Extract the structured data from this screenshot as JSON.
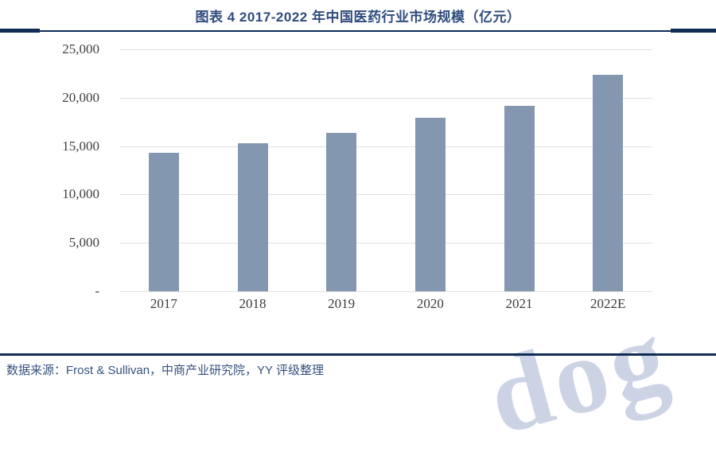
{
  "header": {
    "title": "图表 4 2017-2022 年中国医药行业市场规模（亿元）"
  },
  "chart_data": {
    "type": "bar",
    "title": "图表 4 2017-2022 年中国医药行业市场规模（亿元）",
    "categories": [
      "2017",
      "2018",
      "2019",
      "2020",
      "2021",
      "2022E"
    ],
    "values": [
      14300,
      15300,
      16400,
      17900,
      19200,
      22400
    ],
    "xlabel": "",
    "ylabel": "",
    "ylim": [
      0,
      25000
    ],
    "yticks": [
      25000,
      20000,
      15000,
      10000,
      5000,
      0
    ],
    "ytick_labels": [
      "25,000",
      "20,000",
      "15,000",
      "10,000",
      "5,000",
      "-"
    ],
    "grid": true,
    "legend": false,
    "bar_color": "#8497b0",
    "gridline_color": "#e1e1e1"
  },
  "footer": {
    "source_text": "数据来源：Frost & Sullivan，中商产业研究院，YY 评级整理"
  },
  "watermark": {
    "text": "dog",
    "color": "#ccd3e5"
  },
  "colors": {
    "title_text": "#2e4c7e",
    "rule_navy": "#0f2d55",
    "source_text": "#35517f"
  }
}
